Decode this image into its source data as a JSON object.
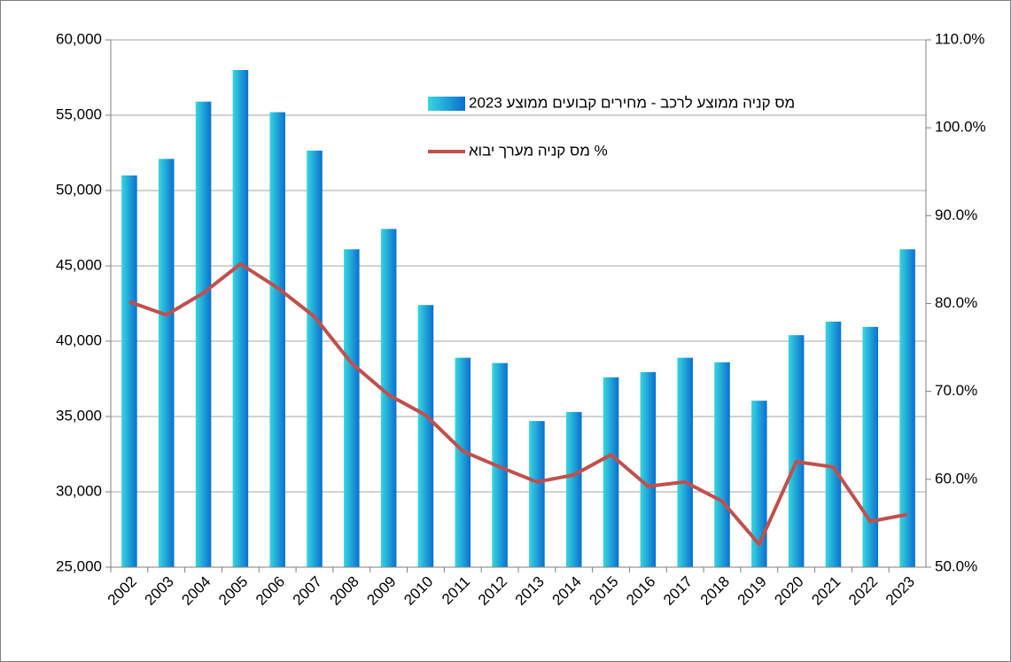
{
  "chart_data": {
    "type": "bar-line",
    "categories": [
      "2002",
      "2003",
      "2004",
      "2005",
      "2006",
      "2007",
      "2008",
      "2009",
      "2010",
      "2011",
      "2012",
      "2013",
      "2014",
      "2015",
      "2016",
      "2017",
      "2018",
      "2019",
      "2020",
      "2021",
      "2022",
      "2023"
    ],
    "series": [
      {
        "name": "מס קניה ממוצע לרכב - מחירים קבועים ממוצע 2023",
        "type": "bar",
        "color": "#0a6fd0",
        "values": [
          51000,
          52100,
          55900,
          58000,
          55200,
          52650,
          46100,
          47450,
          42400,
          38900,
          38550,
          34700,
          35300,
          37600,
          37950,
          38900,
          38600,
          36050,
          40400,
          41300,
          40950,
          46100
        ]
      },
      {
        "name": "% מס קניה מערך יבוא",
        "type": "line",
        "axis": "y2",
        "color": "#c0504d",
        "values": [
          80.2,
          78.7,
          81.2,
          84.5,
          81.8,
          78.5,
          73.2,
          69.6,
          67.3,
          63.2,
          61.4,
          59.7,
          60.5,
          62.8,
          59.2,
          59.7,
          57.5,
          52.6,
          62.0,
          61.4,
          55.2,
          56.0
        ]
      }
    ],
    "ylim": [
      25000,
      60000
    ],
    "yticks": [
      {
        "value": 25000,
        "label": "25,000"
      },
      {
        "value": 30000,
        "label": "30,000"
      },
      {
        "value": 35000,
        "label": "35,000"
      },
      {
        "value": 40000,
        "label": "40,000"
      },
      {
        "value": 45000,
        "label": "45,000"
      },
      {
        "value": 50000,
        "label": "50,000"
      },
      {
        "value": 55000,
        "label": "55,000"
      },
      {
        "value": 60000,
        "label": "60,000"
      }
    ],
    "y2lim": [
      50,
      110
    ],
    "y2ticks": [
      {
        "value": 50,
        "label": "50.0%"
      },
      {
        "value": 60,
        "label": "60.0%"
      },
      {
        "value": 70,
        "label": "70.0%"
      },
      {
        "value": 80,
        "label": "80.0%"
      },
      {
        "value": 90,
        "label": "90.0%"
      },
      {
        "value": 100,
        "label": "100.0%"
      },
      {
        "value": 110,
        "label": "110.0%"
      }
    ],
    "grid": true,
    "legend": "upper right"
  }
}
